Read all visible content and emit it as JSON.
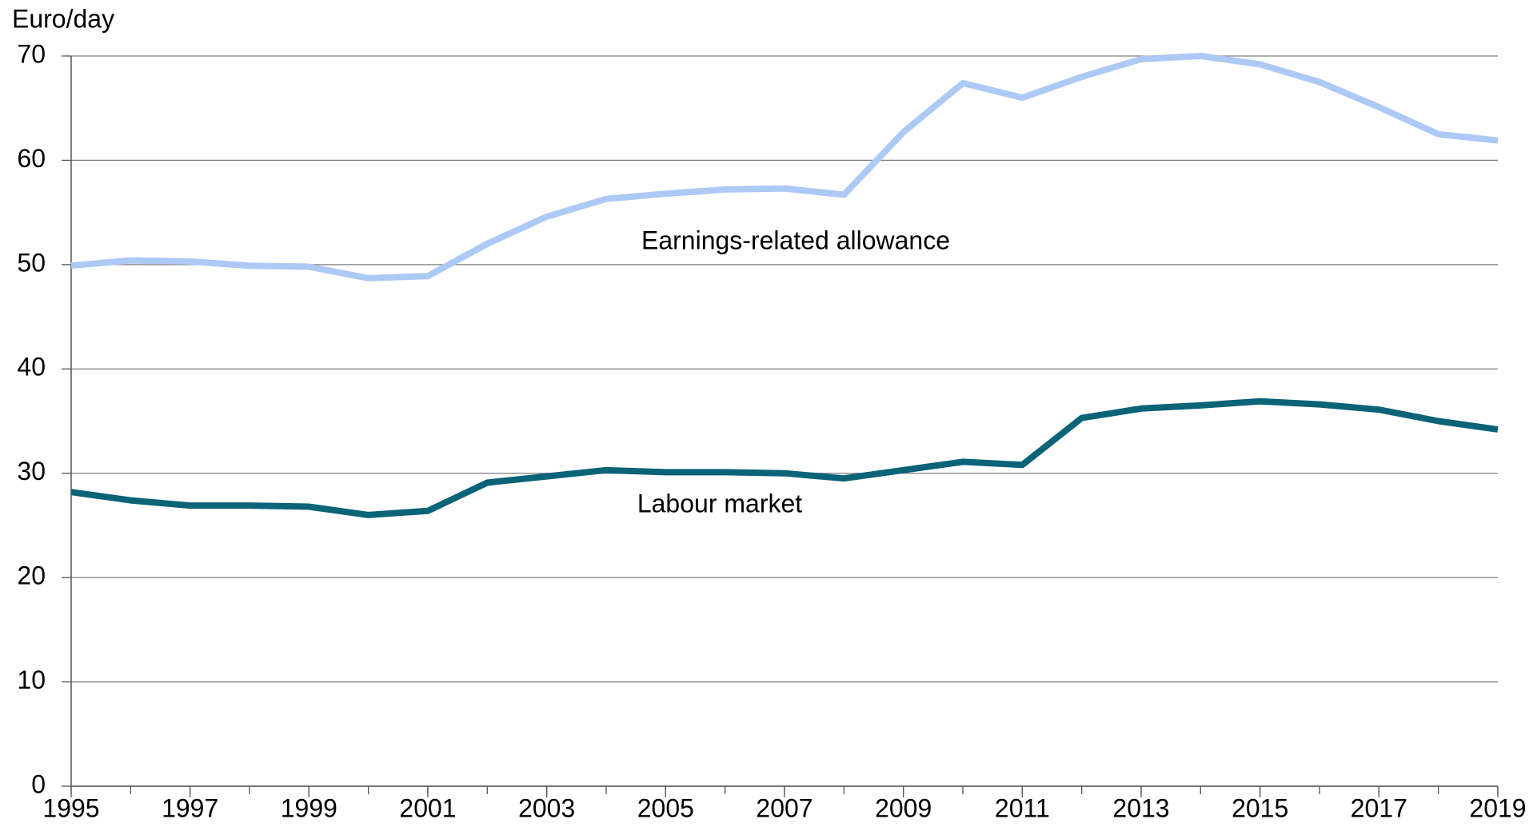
{
  "chart_data": {
    "type": "line",
    "y_axis_label": "Euro/day",
    "x": [
      1995,
      1996,
      1997,
      1998,
      1999,
      2000,
      2001,
      2002,
      2003,
      2004,
      2005,
      2006,
      2007,
      2008,
      2009,
      2010,
      2011,
      2012,
      2013,
      2014,
      2015,
      2016,
      2017,
      2018,
      2019
    ],
    "series": [
      {
        "name": "Earnings-related allowance",
        "color": "#adc9f5",
        "values": [
          49.9,
          50.4,
          50.3,
          49.9,
          49.8,
          48.7,
          48.9,
          52.0,
          54.6,
          56.3,
          56.8,
          57.2,
          57.3,
          56.7,
          62.7,
          67.4,
          66.0,
          68.0,
          69.7,
          70.0,
          69.2,
          67.5,
          65.1,
          62.5,
          61.9
        ]
      },
      {
        "name": "Labour market",
        "color": "#0b6378",
        "values": [
          28.2,
          27.4,
          26.9,
          26.9,
          26.8,
          26.0,
          26.4,
          29.1,
          29.7,
          30.3,
          30.1,
          30.1,
          30.0,
          29.5,
          30.3,
          31.1,
          30.8,
          35.3,
          36.2,
          36.5,
          36.9,
          36.6,
          36.1,
          35.0,
          34.2
        ]
      }
    ],
    "xlim": [
      1995,
      2019
    ],
    "xticks": [
      1995,
      1997,
      1999,
      2001,
      2003,
      2005,
      2007,
      2009,
      2011,
      2013,
      2015,
      2017,
      2019
    ],
    "ylim": [
      0,
      70
    ],
    "yticks": [
      0,
      10,
      20,
      30,
      40,
      50,
      60,
      70
    ],
    "grid": true
  }
}
